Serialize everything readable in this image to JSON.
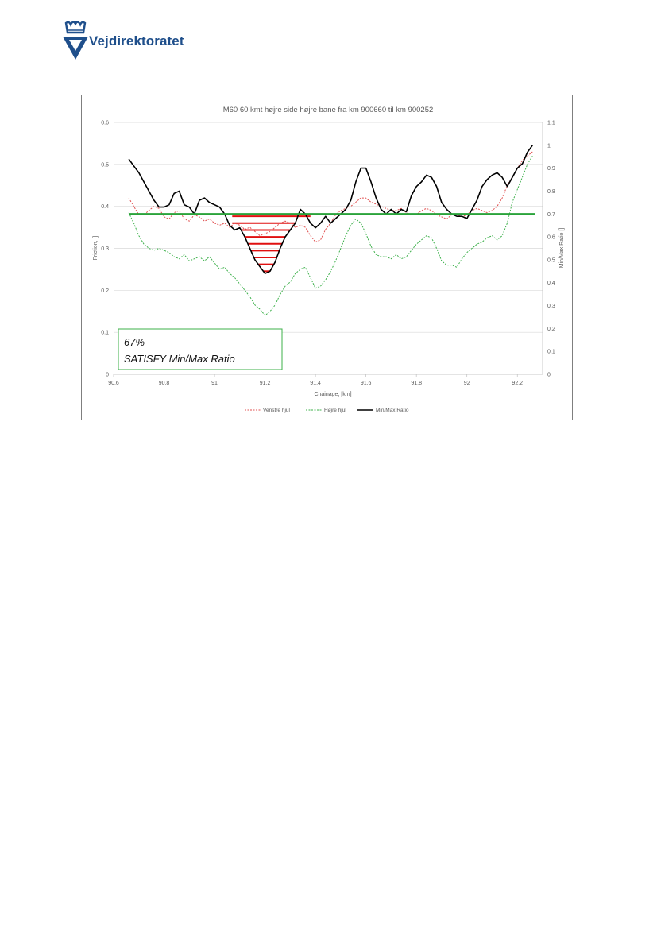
{
  "brand": {
    "name": "Vejdirektoratet",
    "color": "#1f4f8b"
  },
  "chart_data": {
    "type": "line",
    "title": "M60 60 kmt højre side højre bane fra km 900660 til km 900252",
    "xlabel": "Chainage, [km]",
    "ylabel": "Friction, []",
    "y2label": "Min/Max Ratio []",
    "xlim": [
      90.6,
      92.3
    ],
    "ylim": [
      0,
      0.6
    ],
    "y2lim": [
      0,
      1.1
    ],
    "xticks": [
      "90.6",
      "90.8",
      "91",
      "91.2",
      "91.4",
      "91.6",
      "91.8",
      "92",
      "92.2"
    ],
    "yticks": [
      "0",
      "0.1",
      "0.2",
      "0.3",
      "0.4",
      "0.5",
      "0.6"
    ],
    "y2ticks": [
      "0",
      "0.1",
      "0.2",
      "0.3",
      "0.4",
      "0.5",
      "0.6",
      "0.7",
      "0.8",
      "0.9",
      "1",
      "1.1"
    ],
    "grid": "horizontal",
    "legend_position": "bottom",
    "threshold": {
      "axis": "y2",
      "value": 0.7,
      "color": "#2aa33a"
    },
    "annotation": {
      "line1": "67%",
      "line2": "SATISFY Min/Max Ratio"
    },
    "series": [
      {
        "name": "Venstre hjul",
        "axis": "y",
        "color": "#e05050",
        "style": "dashed",
        "x": [
          90.66,
          90.68,
          90.7,
          90.72,
          90.74,
          90.76,
          90.78,
          90.8,
          90.82,
          90.84,
          90.86,
          90.88,
          90.9,
          90.92,
          90.94,
          90.96,
          90.98,
          91.0,
          91.02,
          91.04,
          91.06,
          91.08,
          91.1,
          91.12,
          91.14,
          91.16,
          91.18,
          91.2,
          91.22,
          91.24,
          91.26,
          91.28,
          91.3,
          91.32,
          91.34,
          91.36,
          91.38,
          91.4,
          91.42,
          91.44,
          91.46,
          91.48,
          91.5,
          91.52,
          91.54,
          91.56,
          91.58,
          91.6,
          91.62,
          91.64,
          91.66,
          91.68,
          91.7,
          91.72,
          91.74,
          91.76,
          91.78,
          91.8,
          91.82,
          91.84,
          91.86,
          91.88,
          91.9,
          91.92,
          91.94,
          91.96,
          91.98,
          92.0,
          92.02,
          92.04,
          92.06,
          92.08,
          92.1,
          92.12,
          92.14,
          92.16,
          92.18,
          92.2,
          92.22,
          92.24,
          92.26
        ],
        "values": [
          0.42,
          0.4,
          0.38,
          0.38,
          0.39,
          0.4,
          0.395,
          0.375,
          0.37,
          0.385,
          0.39,
          0.37,
          0.365,
          0.38,
          0.375,
          0.365,
          0.37,
          0.36,
          0.355,
          0.36,
          0.35,
          0.36,
          0.355,
          0.345,
          0.35,
          0.34,
          0.33,
          0.335,
          0.34,
          0.35,
          0.36,
          0.365,
          0.36,
          0.35,
          0.355,
          0.35,
          0.33,
          0.315,
          0.32,
          0.345,
          0.36,
          0.38,
          0.39,
          0.395,
          0.4,
          0.41,
          0.42,
          0.42,
          0.41,
          0.405,
          0.4,
          0.395,
          0.39,
          0.39,
          0.395,
          0.385,
          0.38,
          0.38,
          0.39,
          0.395,
          0.39,
          0.38,
          0.375,
          0.37,
          0.38,
          0.38,
          0.375,
          0.38,
          0.39,
          0.395,
          0.39,
          0.385,
          0.39,
          0.4,
          0.42,
          0.45,
          0.47,
          0.49,
          0.51,
          0.52,
          0.53
        ]
      },
      {
        "name": "Højre hjul",
        "axis": "y",
        "color": "#3cb04a",
        "style": "dashed",
        "x": [
          90.66,
          90.68,
          90.7,
          90.72,
          90.74,
          90.76,
          90.78,
          90.8,
          90.82,
          90.84,
          90.86,
          90.88,
          90.9,
          90.92,
          90.94,
          90.96,
          90.98,
          91.0,
          91.02,
          91.04,
          91.06,
          91.08,
          91.1,
          91.12,
          91.14,
          91.16,
          91.18,
          91.2,
          91.22,
          91.24,
          91.26,
          91.28,
          91.3,
          91.32,
          91.34,
          91.36,
          91.38,
          91.4,
          91.42,
          91.44,
          91.46,
          91.48,
          91.5,
          91.52,
          91.54,
          91.56,
          91.58,
          91.6,
          91.62,
          91.64,
          91.66,
          91.68,
          91.7,
          91.72,
          91.74,
          91.76,
          91.78,
          91.8,
          91.82,
          91.84,
          91.86,
          91.88,
          91.9,
          91.92,
          91.94,
          91.96,
          91.98,
          92.0,
          92.02,
          92.04,
          92.06,
          92.08,
          92.1,
          92.12,
          92.14,
          92.16,
          92.18,
          92.2,
          92.22,
          92.24,
          92.26
        ],
        "values": [
          0.385,
          0.36,
          0.33,
          0.31,
          0.3,
          0.295,
          0.3,
          0.295,
          0.29,
          0.28,
          0.275,
          0.285,
          0.27,
          0.275,
          0.28,
          0.27,
          0.28,
          0.265,
          0.25,
          0.255,
          0.24,
          0.23,
          0.215,
          0.2,
          0.185,
          0.165,
          0.155,
          0.14,
          0.15,
          0.165,
          0.19,
          0.21,
          0.22,
          0.24,
          0.25,
          0.255,
          0.23,
          0.205,
          0.21,
          0.225,
          0.245,
          0.27,
          0.3,
          0.33,
          0.355,
          0.37,
          0.36,
          0.335,
          0.305,
          0.285,
          0.28,
          0.28,
          0.275,
          0.285,
          0.275,
          0.28,
          0.295,
          0.31,
          0.32,
          0.33,
          0.325,
          0.3,
          0.27,
          0.26,
          0.26,
          0.255,
          0.275,
          0.29,
          0.3,
          0.31,
          0.315,
          0.325,
          0.33,
          0.32,
          0.33,
          0.36,
          0.41,
          0.44,
          0.47,
          0.5,
          0.52
        ]
      },
      {
        "name": "Min/Max Ratio",
        "axis": "y2",
        "color": "#000000",
        "style": "solid",
        "x": [
          90.66,
          90.68,
          90.7,
          90.72,
          90.74,
          90.76,
          90.78,
          90.8,
          90.82,
          90.84,
          90.86,
          90.88,
          90.9,
          90.92,
          90.94,
          90.96,
          90.98,
          91.0,
          91.02,
          91.04,
          91.06,
          91.08,
          91.1,
          91.12,
          91.14,
          91.16,
          91.18,
          91.2,
          91.22,
          91.24,
          91.26,
          91.28,
          91.3,
          91.32,
          91.34,
          91.36,
          91.38,
          91.4,
          91.42,
          91.44,
          91.46,
          91.48,
          91.5,
          91.52,
          91.54,
          91.56,
          91.58,
          91.6,
          91.62,
          91.64,
          91.66,
          91.68,
          91.7,
          91.72,
          91.74,
          91.76,
          91.78,
          91.8,
          91.82,
          91.84,
          91.86,
          91.88,
          91.9,
          91.92,
          91.94,
          91.96,
          91.98,
          92.0,
          92.02,
          92.04,
          92.06,
          92.08,
          92.1,
          92.12,
          92.14,
          92.16,
          92.18,
          92.2,
          92.22,
          92.24,
          92.26
        ],
        "values": [
          0.94,
          0.91,
          0.88,
          0.84,
          0.8,
          0.76,
          0.73,
          0.73,
          0.74,
          0.79,
          0.8,
          0.74,
          0.73,
          0.7,
          0.76,
          0.77,
          0.75,
          0.74,
          0.73,
          0.7,
          0.65,
          0.63,
          0.64,
          0.6,
          0.55,
          0.5,
          0.47,
          0.44,
          0.45,
          0.49,
          0.55,
          0.6,
          0.63,
          0.66,
          0.72,
          0.7,
          0.66,
          0.64,
          0.66,
          0.69,
          0.66,
          0.68,
          0.7,
          0.72,
          0.76,
          0.84,
          0.9,
          0.9,
          0.84,
          0.77,
          0.72,
          0.7,
          0.72,
          0.7,
          0.72,
          0.71,
          0.78,
          0.82,
          0.84,
          0.87,
          0.86,
          0.82,
          0.75,
          0.72,
          0.7,
          0.69,
          0.69,
          0.68,
          0.72,
          0.76,
          0.82,
          0.85,
          0.87,
          0.88,
          0.86,
          0.82,
          0.86,
          0.9,
          0.92,
          0.97,
          1.0
        ]
      }
    ]
  }
}
